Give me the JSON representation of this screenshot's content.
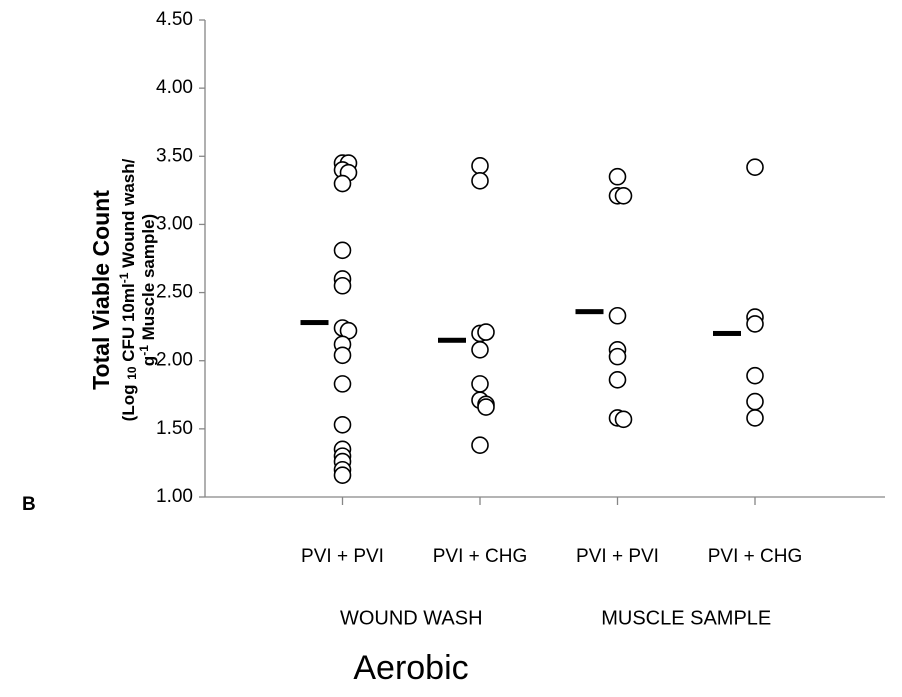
{
  "chart_data": {
    "type": "dot",
    "panel_label": "B",
    "ylabel": "Total Viable Count",
    "ylabel_sub": [
      [
        "(Log ",
        "10",
        " CFU 10ml",
        "-1",
        " Wound wash/"
      ],
      [
        "g",
        "-1",
        " Muscle sample)"
      ]
    ],
    "xlabel": "Aerobic",
    "categories": [
      "PVI + PVI",
      "PVI + CHG",
      "PVI + PVI",
      "PVI + CHG"
    ],
    "groups": [
      "WOUND WASH",
      "MUSCLE SAMPLE"
    ],
    "points": [
      [
        3.45,
        3.45,
        3.4,
        3.38,
        3.3,
        2.81,
        2.6,
        2.55,
        2.24,
        2.22,
        2.12,
        2.04,
        1.83,
        1.53,
        1.35,
        1.3,
        1.26,
        1.2,
        1.16
      ],
      [
        3.43,
        3.32,
        2.2,
        2.21,
        2.08,
        1.83,
        1.71,
        1.68,
        1.66,
        1.38
      ],
      [
        3.35,
        3.21,
        3.21,
        2.33,
        2.08,
        2.03,
        1.86,
        1.58,
        1.57
      ],
      [
        3.42,
        2.32,
        2.27,
        1.89,
        1.7,
        1.58
      ]
    ],
    "means": [
      2.28,
      2.15,
      2.36,
      2.2
    ],
    "marker_color": "#000000",
    "mean_color": "#000000",
    "ylim": [
      1.0,
      4.5
    ],
    "yticks": [
      {
        "value": 1.0,
        "label": "1.00"
      },
      {
        "value": 1.5,
        "label": "1.50"
      },
      {
        "value": 2.0,
        "label": "2.00"
      },
      {
        "value": 2.5,
        "label": "2.50"
      },
      {
        "value": 3.0,
        "label": "3.00"
      },
      {
        "value": 3.5,
        "label": "3.50"
      },
      {
        "value": 4.0,
        "label": "4.00"
      },
      {
        "value": 4.5,
        "label": "4.50"
      }
    ],
    "grid": false
  }
}
